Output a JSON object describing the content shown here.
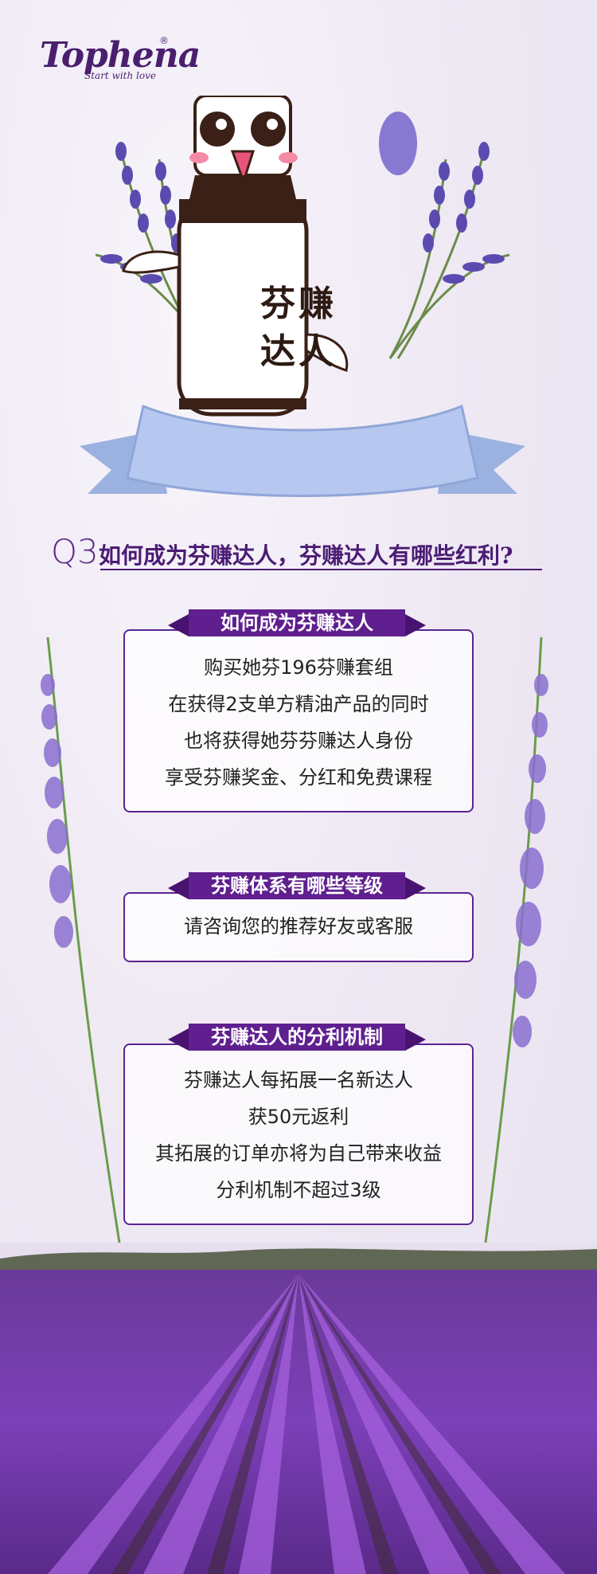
{
  "brand": {
    "name": "Tophena",
    "registered": "®",
    "tagline": "Start with love"
  },
  "hero": {
    "title_line1": "芬赚",
    "title_line2": "达人"
  },
  "question": {
    "number": "Q3",
    "text": "如何成为芬赚达人，芬赚达人有哪些红利?"
  },
  "sections": [
    {
      "title": "如何成为芬赚达人",
      "lines": [
        "购买她芬196芬赚套组",
        "在获得2支单方精油产品的同时",
        "也将获得她芬芬赚达人身份",
        "享受芬赚奖金、分红和免费课程"
      ]
    },
    {
      "title": "芬赚体系有哪些等级",
      "lines": [
        "请咨询您的推荐好友或客服"
      ]
    },
    {
      "title": "芬赚达人的分利机制",
      "lines": [
        "芬赚达人每拓展一名新达人",
        "获50元返利",
        "其拓展的订单亦将为自己带来收益",
        "分利机制不超过3级"
      ]
    }
  ],
  "colors": {
    "accent": "#5f1f8f",
    "text": "#222222",
    "lavender": "#8a4fc4"
  }
}
